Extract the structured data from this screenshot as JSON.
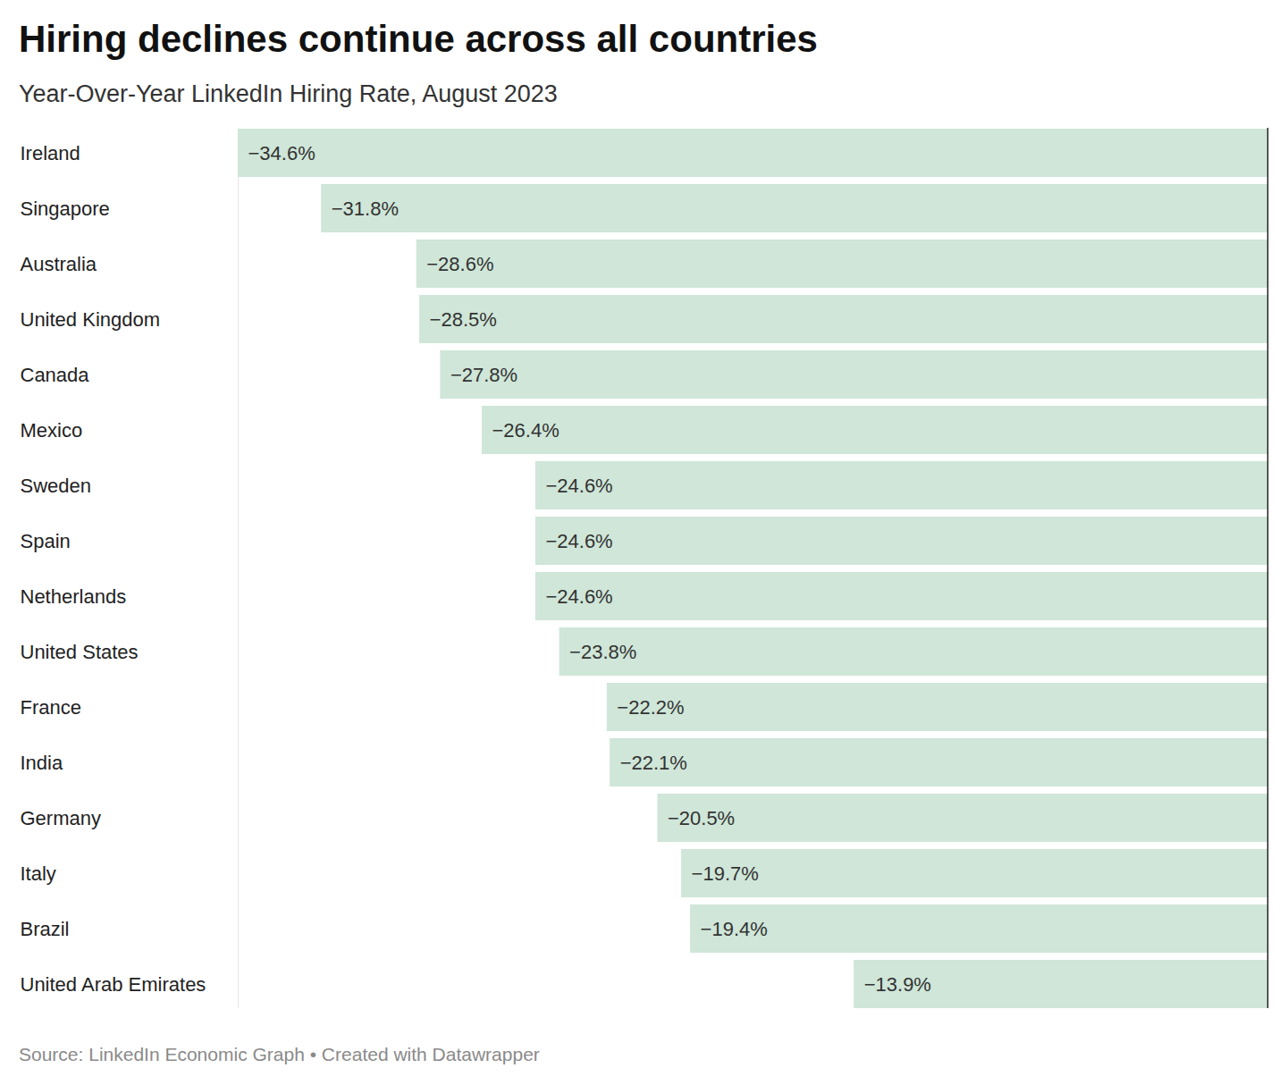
{
  "chart_data": {
    "type": "bar",
    "title": "Hiring declines continue across all countries",
    "subtitle": "Year-Over-Year LinkedIn Hiring Rate, August 2023",
    "caption": "Source: LinkedIn Economic Graph • Created with Datawrapper",
    "orientation": "horizontal",
    "categories": [
      "Ireland",
      "Singapore",
      "Australia",
      "United Kingdom",
      "Canada",
      "Mexico",
      "Sweden",
      "Spain",
      "Netherlands",
      "United States",
      "France",
      "India",
      "Germany",
      "Italy",
      "Brazil",
      "United Arab Emirates"
    ],
    "values": [
      -34.6,
      -31.8,
      -28.6,
      -28.5,
      -27.8,
      -26.4,
      -24.6,
      -24.6,
      -24.6,
      -23.8,
      -22.2,
      -22.1,
      -20.5,
      -19.7,
      -19.4,
      -13.9
    ],
    "value_labels": [
      "−34.6%",
      "−31.8%",
      "−28.6%",
      "−28.5%",
      "−27.8%",
      "−26.4%",
      "−24.6%",
      "−24.6%",
      "−24.6%",
      "−23.8%",
      "−22.2%",
      "−22.1%",
      "−20.5%",
      "−19.7%",
      "−19.4%",
      "−13.9%"
    ],
    "color": "#cfe6d8",
    "data_labels": true,
    "tick_labels": "y",
    "grid": false,
    "xlim": [
      -34.6,
      0
    ],
    "xticks": []
  }
}
